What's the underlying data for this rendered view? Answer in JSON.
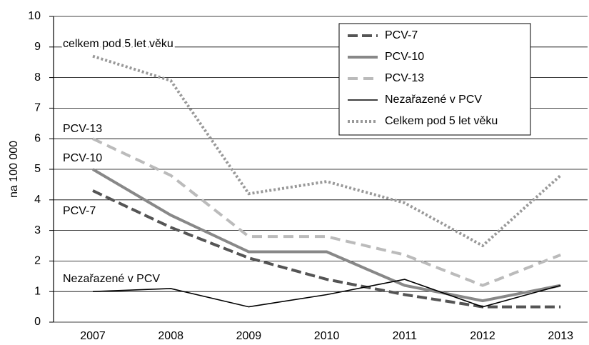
{
  "chart_data": {
    "type": "line",
    "y_label": "na 100 000",
    "categories": [
      "2007",
      "2008",
      "2009",
      "2010",
      "2011",
      "2012",
      "2013"
    ],
    "ylim": [
      0,
      10
    ],
    "yticks": [
      0,
      1,
      2,
      3,
      4,
      5,
      6,
      7,
      8,
      9,
      10
    ],
    "grid": true,
    "legend": "top-right",
    "annotations": [
      "celkem pod 5 let věku",
      "PCV-13",
      "PCV-10",
      "PCV-7",
      "Nezařazené v PCV"
    ],
    "series": [
      {
        "name": "PCV-7",
        "color": "#555555",
        "style": "dashed",
        "values": [
          4.3,
          3.1,
          2.1,
          1.4,
          0.9,
          0.5,
          0.5
        ]
      },
      {
        "name": "PCV-10",
        "color": "#888888",
        "style": "solid-thick",
        "values": [
          5.0,
          3.5,
          2.3,
          2.3,
          1.2,
          0.7,
          1.2
        ]
      },
      {
        "name": "PCV-13",
        "color": "#bbbbbb",
        "style": "dashed-light",
        "values": [
          6.0,
          4.8,
          2.8,
          2.8,
          2.2,
          1.2,
          2.2
        ]
      },
      {
        "name": "Nezařazené v PCV",
        "color": "#000000",
        "style": "solid-thin",
        "values": [
          1.0,
          1.1,
          0.5,
          0.9,
          1.4,
          0.5,
          1.2
        ]
      },
      {
        "name": "Celkem pod 5 let věku",
        "color": "#999999",
        "style": "dotted",
        "values": [
          8.7,
          7.9,
          4.2,
          4.6,
          3.9,
          2.5,
          4.8
        ]
      }
    ]
  }
}
